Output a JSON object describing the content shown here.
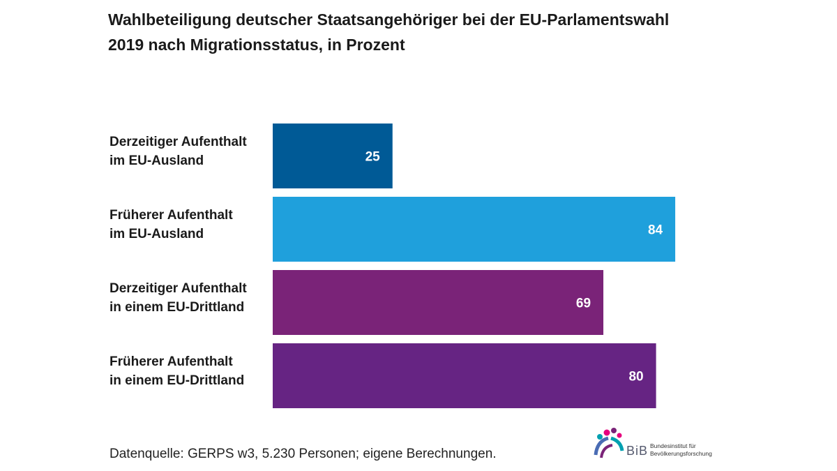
{
  "chart_data": {
    "type": "bar",
    "orientation": "horizontal",
    "title": "Wahlbeteiligung deutscher Staatsangehöriger bei der EU-Parlamentswahl 2019 nach Migrationsstatus, in Prozent",
    "title_lines": [
      "Wahlbeteiligung deutscher Staatsangehöriger bei der EU-Parlamentswahl",
      "2019 nach Migrationsstatus, in Prozent"
    ],
    "categories": [
      [
        "Derzeitiger Aufenthalt",
        "im EU-Ausland"
      ],
      [
        "Früherer Aufenthalt",
        "im EU-Ausland"
      ],
      [
        "Derzeitiger Aufenthalt",
        "in einem EU-Drittland"
      ],
      [
        "Früherer Aufenthalt",
        "in einem EU-Drittland"
      ]
    ],
    "values": [
      25,
      84,
      69,
      80
    ],
    "colors": [
      "#005a96",
      "#1fa0dc",
      "#7a2378",
      "#662483"
    ],
    "xlim": [
      0,
      100
    ],
    "xlabel": "",
    "ylabel": "",
    "grid": false,
    "legend": "none"
  },
  "source": "Datenquelle: GERPS w3, 5.230 Personen; eigene Berechnungen.",
  "logo": {
    "abbr": "BiB",
    "line1": "Bundesinstitut für",
    "line2": "Bevölkerungsforschung",
    "colors": [
      "#e6007e",
      "#00a0b0",
      "#4a6cb4",
      "#7a2378"
    ]
  }
}
